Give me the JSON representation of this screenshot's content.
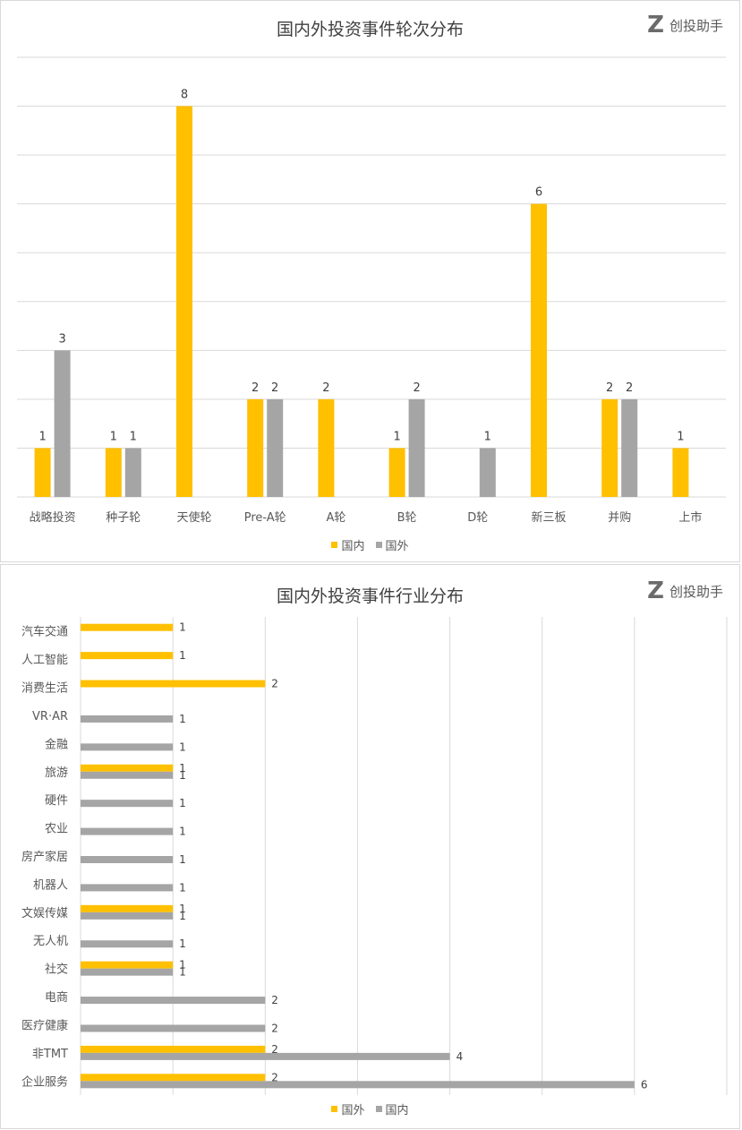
{
  "logo": {
    "text": "创投助手",
    "mark": "Z"
  },
  "colors": {
    "domestic": "#FFC000",
    "foreign": "#A5A5A5",
    "grid": "#D9D9D9"
  },
  "chart_data": [
    {
      "type": "bar",
      "title": "国内外投资事件轮次分布",
      "categories": [
        "战略投资",
        "种子轮",
        "天使轮",
        "Pre-A轮",
        "A轮",
        "B轮",
        "D轮",
        "新三板",
        "并购",
        "上市"
      ],
      "series": [
        {
          "name": "国内",
          "values": [
            1,
            1,
            8,
            2,
            2,
            1,
            null,
            6,
            2,
            1
          ]
        },
        {
          "name": "国外",
          "values": [
            3,
            1,
            null,
            2,
            null,
            2,
            1,
            null,
            2,
            null
          ]
        }
      ],
      "ylim": [
        0,
        9
      ],
      "grid": true,
      "legend": "bottom"
    },
    {
      "type": "bar",
      "orientation": "horizontal",
      "title": "国内外投资事件行业分布",
      "categories": [
        "汽车交通",
        "人工智能",
        "消费生活",
        "VR·AR",
        "金融",
        "旅游",
        "硬件",
        "农业",
        "房产家居",
        "机器人",
        "文娱传媒",
        "无人机",
        "社交",
        "电商",
        "医疗健康",
        "非TMT",
        "企业服务"
      ],
      "series": [
        {
          "name": "国外",
          "values": [
            1,
            1,
            2,
            null,
            null,
            1,
            null,
            null,
            null,
            null,
            1,
            null,
            1,
            null,
            null,
            2,
            2
          ]
        },
        {
          "name": "国内",
          "values": [
            null,
            null,
            null,
            1,
            1,
            1,
            1,
            1,
            1,
            1,
            1,
            1,
            1,
            2,
            2,
            4,
            6
          ]
        }
      ],
      "xlim": [
        0,
        7
      ],
      "grid": true,
      "legend": "bottom"
    }
  ]
}
